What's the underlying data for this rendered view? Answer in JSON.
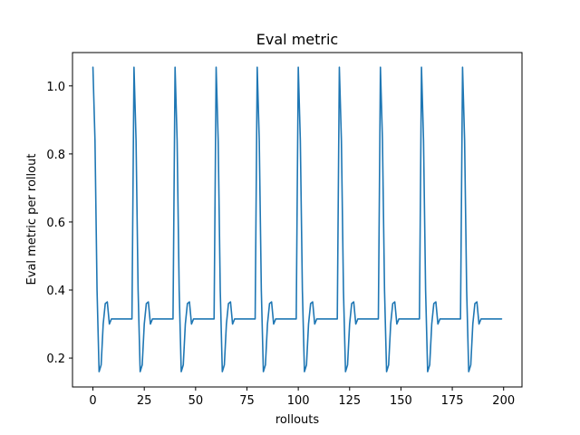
{
  "chart_data": {
    "type": "line",
    "title": "Eval metric",
    "xlabel": "rollouts",
    "ylabel": "Eval metric per rollout",
    "xlim": [
      -9.95,
      208.95
    ],
    "ylim": [
      0.115,
      1.098
    ],
    "xticks": [
      0,
      25,
      50,
      75,
      100,
      125,
      150,
      175,
      200
    ],
    "yticks": [
      0.2,
      0.4,
      0.6,
      0.8,
      1.0
    ],
    "ytick_labels": [
      "0.2",
      "0.4",
      "0.6",
      "0.8",
      "1.0"
    ],
    "grid": false,
    "legend": "none",
    "series": [
      {
        "color": "#1f77b4",
        "x": [
          0,
          1,
          2,
          3,
          4,
          5,
          6,
          7,
          8,
          9,
          10,
          11,
          12,
          13,
          14,
          15,
          16,
          17,
          18,
          19,
          20,
          21,
          22,
          23,
          24,
          25,
          26,
          27,
          28,
          29,
          30,
          31,
          32,
          33,
          34,
          35,
          36,
          37,
          38,
          39,
          40,
          41,
          42,
          43,
          44,
          45,
          46,
          47,
          48,
          49,
          50,
          51,
          52,
          53,
          54,
          55,
          56,
          57,
          58,
          59,
          60,
          61,
          62,
          63,
          64,
          65,
          66,
          67,
          68,
          69,
          70,
          71,
          72,
          73,
          74,
          75,
          76,
          77,
          78,
          79,
          80,
          81,
          82,
          83,
          84,
          85,
          86,
          87,
          88,
          89,
          90,
          91,
          92,
          93,
          94,
          95,
          96,
          97,
          98,
          99,
          100,
          101,
          102,
          103,
          104,
          105,
          106,
          107,
          108,
          109,
          110,
          111,
          112,
          113,
          114,
          115,
          116,
          117,
          118,
          119,
          120,
          121,
          122,
          123,
          124,
          125,
          126,
          127,
          128,
          129,
          130,
          131,
          132,
          133,
          134,
          135,
          136,
          137,
          138,
          139,
          140,
          141,
          142,
          143,
          144,
          145,
          146,
          147,
          148,
          149,
          150,
          151,
          152,
          153,
          154,
          155,
          156,
          157,
          158,
          159,
          160,
          161,
          162,
          163,
          164,
          165,
          166,
          167,
          168,
          169,
          170,
          171,
          172,
          173,
          174,
          175,
          176,
          177,
          178,
          179,
          180,
          181,
          182,
          183,
          184,
          185,
          186,
          187,
          188,
          189,
          190,
          191,
          192,
          193,
          194,
          195,
          196,
          197,
          198,
          199
        ],
        "y": [
          1.055,
          0.84,
          0.4,
          0.16,
          0.18,
          0.3,
          0.36,
          0.365,
          0.3,
          0.315,
          0.315,
          0.315,
          0.315,
          0.315,
          0.315,
          0.315,
          0.315,
          0.315,
          0.315,
          0.315,
          1.055,
          0.84,
          0.4,
          0.16,
          0.18,
          0.3,
          0.36,
          0.365,
          0.3,
          0.315,
          0.315,
          0.315,
          0.315,
          0.315,
          0.315,
          0.315,
          0.315,
          0.315,
          0.315,
          0.315,
          1.055,
          0.84,
          0.4,
          0.16,
          0.18,
          0.3,
          0.36,
          0.365,
          0.3,
          0.315,
          0.315,
          0.315,
          0.315,
          0.315,
          0.315,
          0.315,
          0.315,
          0.315,
          0.315,
          0.315,
          1.055,
          0.84,
          0.4,
          0.16,
          0.18,
          0.3,
          0.36,
          0.365,
          0.3,
          0.315,
          0.315,
          0.315,
          0.315,
          0.315,
          0.315,
          0.315,
          0.315,
          0.315,
          0.315,
          0.315,
          1.055,
          0.84,
          0.4,
          0.16,
          0.18,
          0.3,
          0.36,
          0.365,
          0.3,
          0.315,
          0.315,
          0.315,
          0.315,
          0.315,
          0.315,
          0.315,
          0.315,
          0.315,
          0.315,
          0.315,
          1.055,
          0.84,
          0.4,
          0.16,
          0.18,
          0.3,
          0.36,
          0.365,
          0.3,
          0.315,
          0.315,
          0.315,
          0.315,
          0.315,
          0.315,
          0.315,
          0.315,
          0.315,
          0.315,
          0.315,
          1.055,
          0.84,
          0.4,
          0.16,
          0.18,
          0.3,
          0.36,
          0.365,
          0.3,
          0.315,
          0.315,
          0.315,
          0.315,
          0.315,
          0.315,
          0.315,
          0.315,
          0.315,
          0.315,
          0.315,
          1.055,
          0.84,
          0.4,
          0.16,
          0.18,
          0.3,
          0.36,
          0.365,
          0.3,
          0.315,
          0.315,
          0.315,
          0.315,
          0.315,
          0.315,
          0.315,
          0.315,
          0.315,
          0.315,
          0.315,
          1.055,
          0.84,
          0.4,
          0.16,
          0.18,
          0.3,
          0.36,
          0.365,
          0.3,
          0.315,
          0.315,
          0.315,
          0.315,
          0.315,
          0.315,
          0.315,
          0.315,
          0.315,
          0.315,
          0.315,
          1.055,
          0.84,
          0.4,
          0.16,
          0.18,
          0.3,
          0.36,
          0.365,
          0.3,
          0.315,
          0.315,
          0.315,
          0.315,
          0.315,
          0.315,
          0.315,
          0.315,
          0.315,
          0.315,
          0.315
        ]
      }
    ]
  }
}
